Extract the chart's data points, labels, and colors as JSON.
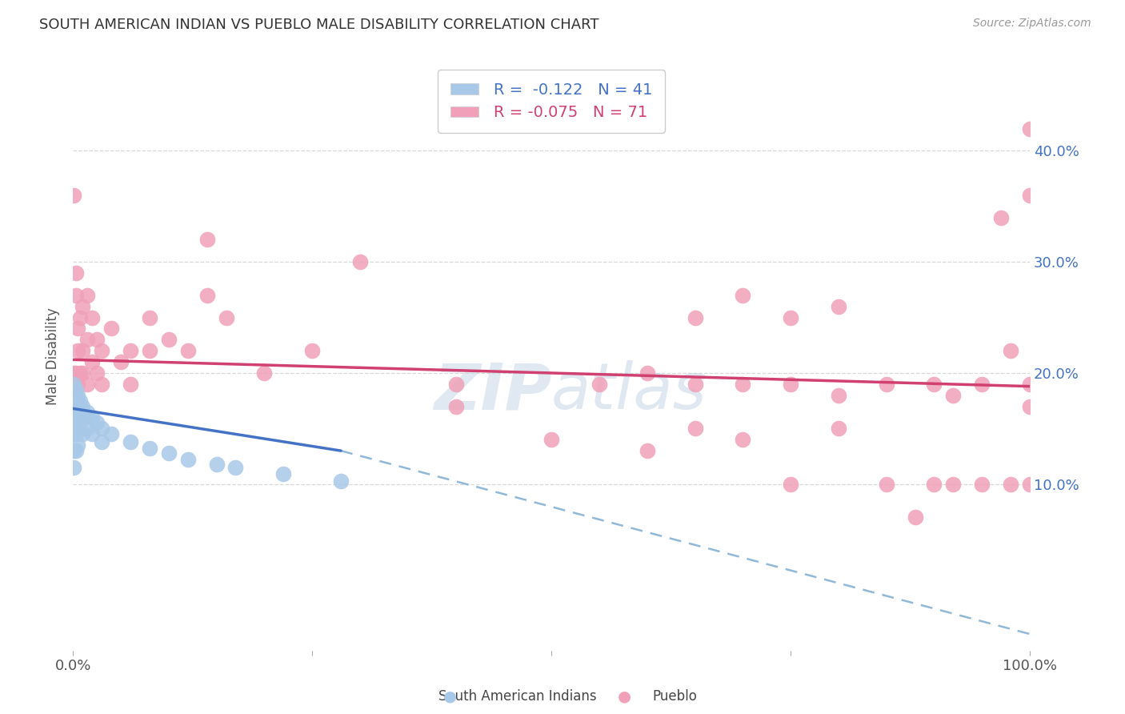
{
  "title": "SOUTH AMERICAN INDIAN VS PUEBLO MALE DISABILITY CORRELATION CHART",
  "source": "Source: ZipAtlas.com",
  "ylabel": "Male Disability",
  "legend_label1": "South American Indians",
  "legend_label2": "Pueblo",
  "R1": "-0.122",
  "N1": "41",
  "R2": "-0.075",
  "N2": "71",
  "blue_color": "#a8c8e8",
  "pink_color": "#f0a0b8",
  "blue_line_color": "#4472c4",
  "pink_line_color": "#d04070",
  "dashed_line_color": "#90b8d8",
  "watermark_zip": "ZIP",
  "watermark_atlas": "atlas",
  "xlim": [
    0.0,
    1.0
  ],
  "ylim": [
    -0.05,
    0.48
  ],
  "yticks": [
    0.1,
    0.2,
    0.3,
    0.4
  ],
  "ytick_labels": [
    "10.0%",
    "20.0%",
    "30.0%",
    "40.0%"
  ],
  "blue_scatter_x": [
    0.001,
    0.001,
    0.001,
    0.001,
    0.001,
    0.001,
    0.001,
    0.001,
    0.003,
    0.003,
    0.003,
    0.003,
    0.003,
    0.003,
    0.005,
    0.005,
    0.005,
    0.005,
    0.005,
    0.007,
    0.007,
    0.007,
    0.01,
    0.01,
    0.01,
    0.015,
    0.015,
    0.02,
    0.02,
    0.025,
    0.03,
    0.03,
    0.04,
    0.06,
    0.08,
    0.1,
    0.12,
    0.15,
    0.17,
    0.22,
    0.28
  ],
  "blue_scatter_y": [
    0.19,
    0.185,
    0.175,
    0.165,
    0.155,
    0.145,
    0.13,
    0.115,
    0.185,
    0.175,
    0.165,
    0.155,
    0.145,
    0.13,
    0.18,
    0.17,
    0.16,
    0.15,
    0.135,
    0.175,
    0.165,
    0.155,
    0.17,
    0.16,
    0.145,
    0.165,
    0.15,
    0.16,
    0.145,
    0.155,
    0.15,
    0.138,
    0.145,
    0.138,
    0.132,
    0.128,
    0.122,
    0.118,
    0.115,
    0.109,
    0.103
  ],
  "pink_scatter_x": [
    0.001,
    0.001,
    0.003,
    0.003,
    0.003,
    0.005,
    0.005,
    0.005,
    0.007,
    0.007,
    0.01,
    0.01,
    0.01,
    0.015,
    0.015,
    0.015,
    0.02,
    0.02,
    0.025,
    0.025,
    0.03,
    0.03,
    0.04,
    0.05,
    0.06,
    0.06,
    0.08,
    0.08,
    0.1,
    0.12,
    0.14,
    0.14,
    0.16,
    0.2,
    0.25,
    0.3,
    0.4,
    0.4,
    0.5,
    0.55,
    0.6,
    0.6,
    0.65,
    0.65,
    0.65,
    0.7,
    0.7,
    0.7,
    0.75,
    0.75,
    0.75,
    0.8,
    0.8,
    0.8,
    0.85,
    0.85,
    0.88,
    0.9,
    0.9,
    0.92,
    0.92,
    0.95,
    0.95,
    0.97,
    0.98,
    0.98,
    1.0,
    1.0,
    1.0,
    1.0,
    1.0
  ],
  "pink_scatter_y": [
    0.36,
    0.2,
    0.29,
    0.27,
    0.2,
    0.24,
    0.22,
    0.19,
    0.25,
    0.2,
    0.26,
    0.22,
    0.2,
    0.27,
    0.23,
    0.19,
    0.25,
    0.21,
    0.23,
    0.2,
    0.22,
    0.19,
    0.24,
    0.21,
    0.22,
    0.19,
    0.25,
    0.22,
    0.23,
    0.22,
    0.32,
    0.27,
    0.25,
    0.2,
    0.22,
    0.3,
    0.19,
    0.17,
    0.14,
    0.19,
    0.2,
    0.13,
    0.25,
    0.19,
    0.15,
    0.27,
    0.19,
    0.14,
    0.25,
    0.19,
    0.1,
    0.26,
    0.18,
    0.15,
    0.19,
    0.1,
    0.07,
    0.19,
    0.1,
    0.18,
    0.1,
    0.19,
    0.1,
    0.34,
    0.22,
    0.1,
    0.42,
    0.36,
    0.19,
    0.17,
    0.1
  ],
  "blue_line_x": [
    0.0,
    0.28
  ],
  "blue_line_y": [
    0.168,
    0.13
  ],
  "pink_line_x": [
    0.0,
    1.0
  ],
  "pink_line_y": [
    0.212,
    0.188
  ],
  "dashed_line_x": [
    0.28,
    1.0
  ],
  "dashed_line_y": [
    0.13,
    -0.035
  ],
  "background_color": "#ffffff",
  "grid_color": "#d8d8d8"
}
